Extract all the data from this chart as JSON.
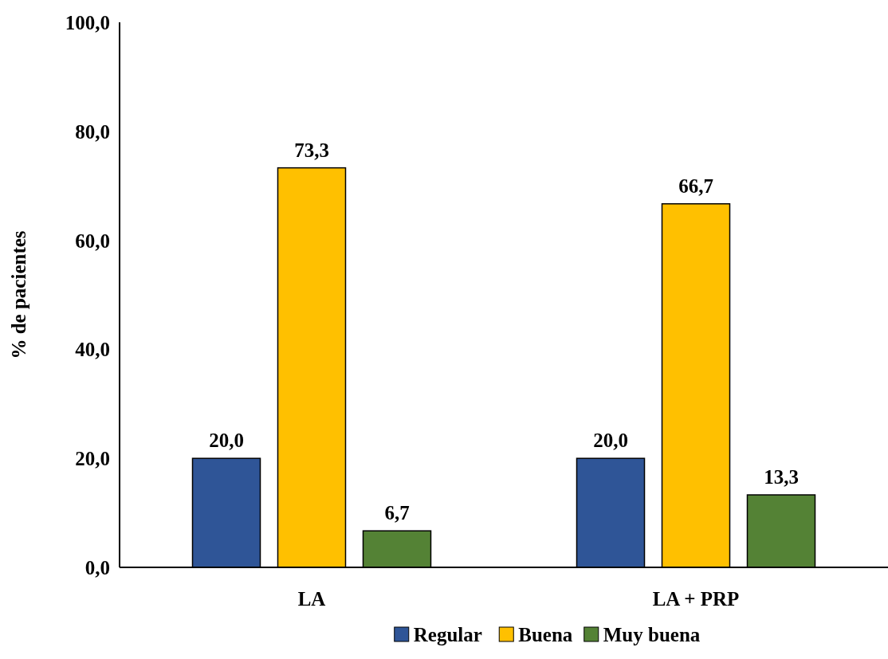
{
  "chart_data": {
    "type": "bar",
    "ylabel": "% de pacientes",
    "categories": [
      "LA",
      "LA + PRP"
    ],
    "series": [
      {
        "name": "Regular",
        "color": "#2f5597",
        "values": [
          20.0,
          20.0
        ],
        "value_labels": [
          "20,0",
          "20,0"
        ]
      },
      {
        "name": "Buena",
        "color": "#ffc000",
        "values": [
          73.3,
          66.7
        ],
        "value_labels": [
          "73,3",
          "66,7"
        ]
      },
      {
        "name": "Muy buena",
        "color": "#548235",
        "values": [
          6.7,
          13.3
        ],
        "value_labels": [
          "6,7",
          "13,3"
        ]
      }
    ],
    "ylim": [
      0,
      100
    ],
    "yticks": [
      {
        "value": 0,
        "label": "0,0"
      },
      {
        "value": 20,
        "label": "20,0"
      },
      {
        "value": 40,
        "label": "40,0"
      },
      {
        "value": 60,
        "label": "60,0"
      },
      {
        "value": 80,
        "label": "80,0"
      },
      {
        "value": 100,
        "label": "100,0"
      }
    ],
    "grid": false,
    "legend": "bottom"
  }
}
